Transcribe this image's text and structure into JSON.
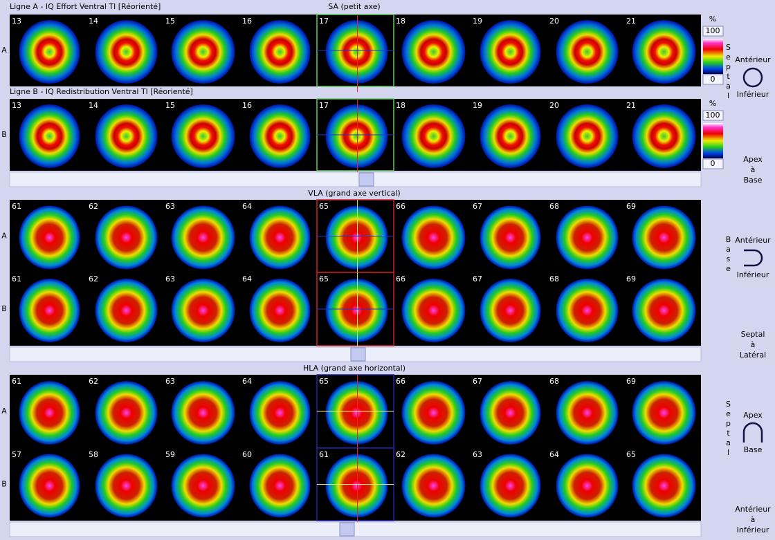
{
  "sa": {
    "title": "SA (petit axe)",
    "rows": [
      {
        "caption": "Ligne A - IQ Effort Ventral Tl [Réorienté]",
        "label": "A",
        "slices": [
          13,
          14,
          15,
          16,
          17,
          18,
          19,
          20,
          21
        ]
      },
      {
        "caption": "Ligne B - IQ Redistribution Ventral Tl [Réorienté]",
        "label": "B",
        "slices": [
          13,
          14,
          15,
          16,
          17,
          18,
          19,
          20,
          21
        ]
      }
    ]
  },
  "vla": {
    "title": "VLA (grand axe vertical)",
    "rows": [
      {
        "label": "A",
        "slices": [
          61,
          62,
          63,
          64,
          65,
          66,
          67,
          68,
          69
        ]
      },
      {
        "label": "B",
        "slices": [
          61,
          62,
          63,
          64,
          65,
          66,
          67,
          68,
          69
        ]
      }
    ]
  },
  "hla": {
    "title": "HLA (grand axe horizontal)",
    "rows": [
      {
        "label": "A",
        "slices": [
          61,
          62,
          63,
          64,
          65,
          66,
          67,
          68,
          69
        ]
      },
      {
        "label": "B",
        "slices": [
          57,
          58,
          59,
          60,
          61,
          62,
          63,
          64,
          65
        ]
      }
    ]
  },
  "scale": [
    {
      "unit": "%",
      "max": 100,
      "min": 0
    },
    {
      "unit": "%",
      "max": 100,
      "min": 0
    }
  ],
  "orientation": {
    "sa": {
      "vertical": "Septal",
      "top": "Antérieur",
      "bottom": "Inférieur",
      "range": [
        "Apex",
        "à",
        "Base"
      ]
    },
    "vla": {
      "vertical": "Base",
      "top": "Antérieur",
      "bottom": "Inférieur",
      "range": [
        "Septal",
        "à",
        "Latéral"
      ]
    },
    "hla": {
      "vertical": "Septal",
      "top": "Apex",
      "bottom": "Base",
      "range": [
        "Antérieur",
        "à",
        "Inférieur"
      ]
    }
  }
}
